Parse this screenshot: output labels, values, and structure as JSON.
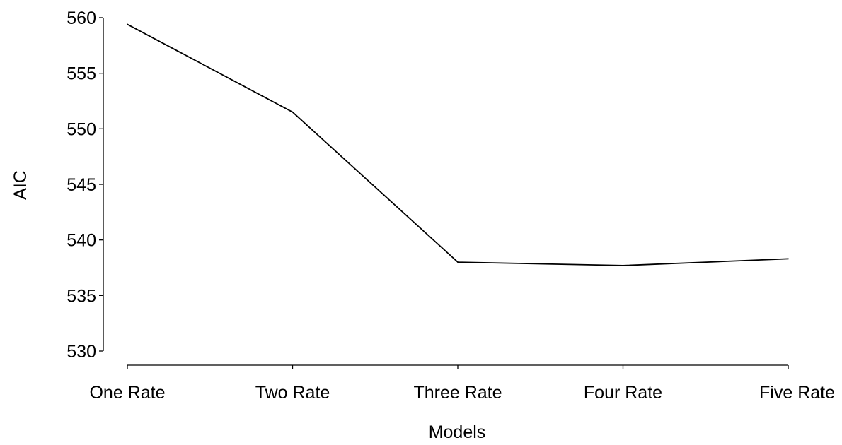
{
  "chart_data": {
    "type": "line",
    "categories": [
      "One Rate",
      "Two Rate",
      "Three Rate",
      "Four Rate",
      "Five Rate"
    ],
    "series": [
      {
        "values": [
          559.4,
          551.5,
          538.0,
          537.7,
          538.3
        ]
      }
    ],
    "xlabel": "Models",
    "ylabel": "AIC",
    "ylim": [
      530,
      560
    ],
    "yticks": [
      530,
      535,
      540,
      545,
      550,
      555,
      560
    ],
    "grid": false,
    "line_color": "#000000"
  }
}
